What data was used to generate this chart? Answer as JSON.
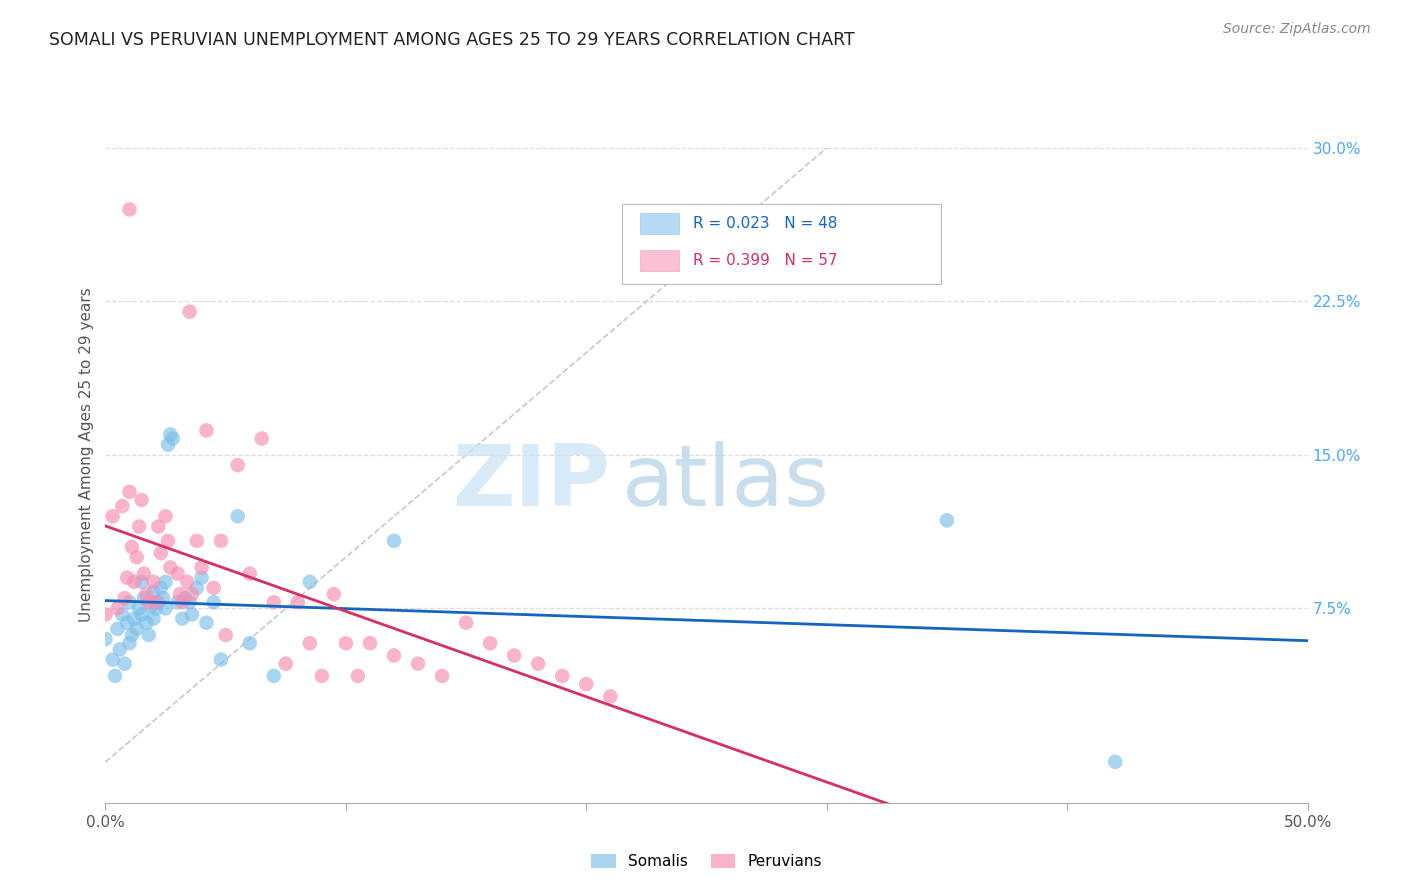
{
  "title": "SOMALI VS PERUVIAN UNEMPLOYMENT AMONG AGES 25 TO 29 YEARS CORRELATION CHART",
  "source": "Source: ZipAtlas.com",
  "ylabel": "Unemployment Among Ages 25 to 29 years",
  "xlim": [
    0.0,
    0.5
  ],
  "ylim": [
    -0.02,
    0.32
  ],
  "xticks": [
    0.0,
    0.1,
    0.2,
    0.3,
    0.4,
    0.5
  ],
  "xticklabels": [
    "0.0%",
    "",
    "",
    "",
    "",
    "50.0%"
  ],
  "yticks_right": [
    0.075,
    0.15,
    0.225,
    0.3
  ],
  "yticklabels_right": [
    "7.5%",
    "15.0%",
    "22.5%",
    "30.0%"
  ],
  "somali_color": "#7bbfea",
  "peruvian_color": "#f78db0",
  "somali_line_color": "#1565c0",
  "peruvian_line_color": "#d63060",
  "diagonal_color": "#c8c8c8",
  "legend_R_somali": "R = 0.023",
  "legend_N_somali": "N = 48",
  "legend_R_peruvian": "R = 0.399",
  "legend_N_peruvian": "N = 57",
  "somali_x": [
    0.0,
    0.003,
    0.004,
    0.005,
    0.006,
    0.007,
    0.008,
    0.009,
    0.01,
    0.01,
    0.011,
    0.012,
    0.013,
    0.014,
    0.015,
    0.015,
    0.016,
    0.017,
    0.018,
    0.019,
    0.02,
    0.02,
    0.021,
    0.022,
    0.023,
    0.024,
    0.025,
    0.025,
    0.026,
    0.027,
    0.028,
    0.03,
    0.032,
    0.033,
    0.035,
    0.036,
    0.038,
    0.04,
    0.042,
    0.045,
    0.048,
    0.055,
    0.06,
    0.07,
    0.085,
    0.12,
    0.35,
    0.42
  ],
  "somali_y": [
    0.06,
    0.05,
    0.042,
    0.065,
    0.055,
    0.072,
    0.048,
    0.068,
    0.078,
    0.058,
    0.062,
    0.07,
    0.065,
    0.075,
    0.088,
    0.072,
    0.08,
    0.068,
    0.062,
    0.076,
    0.083,
    0.07,
    0.075,
    0.078,
    0.085,
    0.08,
    0.088,
    0.075,
    0.155,
    0.16,
    0.158,
    0.078,
    0.07,
    0.08,
    0.078,
    0.072,
    0.085,
    0.09,
    0.068,
    0.078,
    0.05,
    0.12,
    0.058,
    0.042,
    0.088,
    0.108,
    0.118,
    0.0
  ],
  "peruvian_x": [
    0.0,
    0.003,
    0.005,
    0.007,
    0.008,
    0.009,
    0.01,
    0.01,
    0.011,
    0.012,
    0.013,
    0.014,
    0.015,
    0.016,
    0.017,
    0.018,
    0.02,
    0.021,
    0.022,
    0.023,
    0.025,
    0.026,
    0.027,
    0.03,
    0.031,
    0.032,
    0.034,
    0.035,
    0.036,
    0.038,
    0.04,
    0.042,
    0.045,
    0.048,
    0.05,
    0.055,
    0.06,
    0.065,
    0.07,
    0.075,
    0.08,
    0.085,
    0.09,
    0.095,
    0.1,
    0.105,
    0.11,
    0.12,
    0.13,
    0.14,
    0.15,
    0.16,
    0.17,
    0.18,
    0.19,
    0.2,
    0.21
  ],
  "peruvian_y": [
    0.072,
    0.12,
    0.075,
    0.125,
    0.08,
    0.09,
    0.27,
    0.132,
    0.105,
    0.088,
    0.1,
    0.115,
    0.128,
    0.092,
    0.082,
    0.078,
    0.088,
    0.078,
    0.115,
    0.102,
    0.12,
    0.108,
    0.095,
    0.092,
    0.082,
    0.078,
    0.088,
    0.22,
    0.082,
    0.108,
    0.095,
    0.162,
    0.085,
    0.108,
    0.062,
    0.145,
    0.092,
    0.158,
    0.078,
    0.048,
    0.078,
    0.058,
    0.042,
    0.082,
    0.058,
    0.042,
    0.058,
    0.052,
    0.048,
    0.042,
    0.068,
    0.058,
    0.052,
    0.048,
    0.042,
    0.038,
    0.032
  ],
  "watermark_zip": "ZIP",
  "watermark_atlas": "atlas",
  "background_color": "#ffffff",
  "grid_color": "#dddddd"
}
